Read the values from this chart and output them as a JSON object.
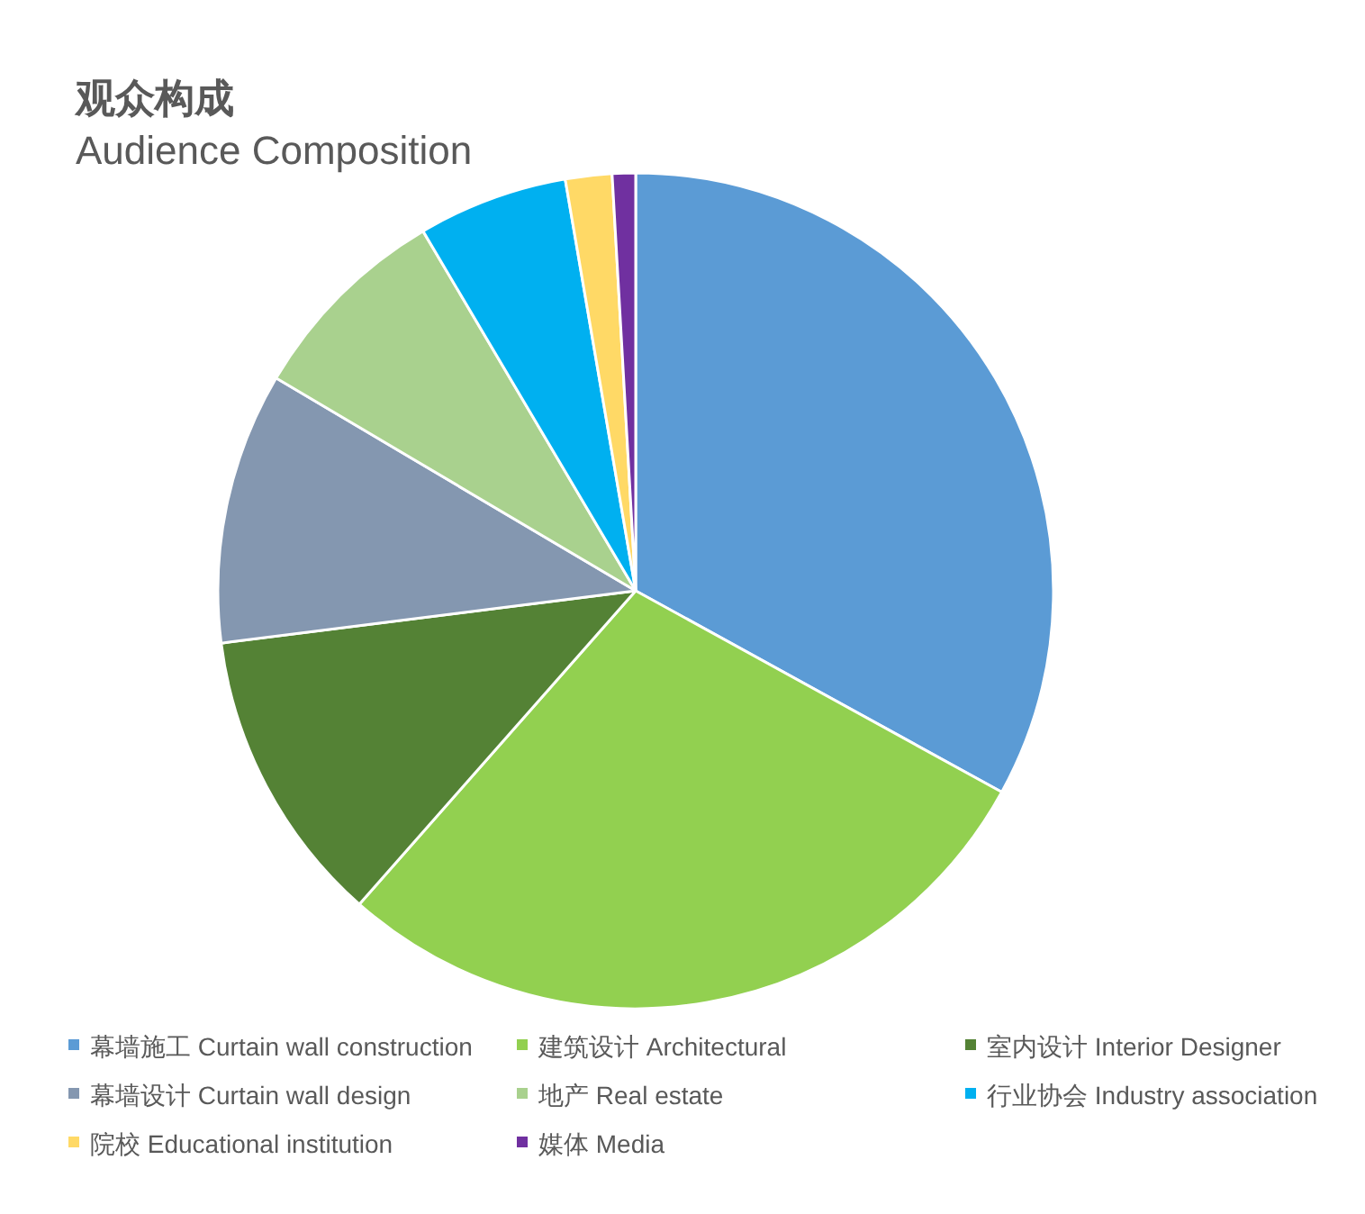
{
  "chart_data": {
    "type": "pie",
    "title": "观众构成",
    "subtitle": "Audience Composition",
    "categories": [
      "幕墙施工 Curtain wall construction",
      "建筑设计 Architectural",
      "室内设计 Interior Designer",
      "幕墙设计 Curtain wall design",
      "地产 Real estate",
      "行业协会 Industry association",
      "院校 Educational institution",
      "媒体 Media"
    ],
    "values": [
      33,
      28.5,
      11.5,
      10.5,
      8,
      5.8,
      1.8,
      0.9
    ],
    "colors": [
      "#5b9bd5",
      "#92d050",
      "#548235",
      "#8497b0",
      "#a9d18e",
      "#00b0f0",
      "#ffd966",
      "#7030a0"
    ],
    "legend": "bottom"
  }
}
